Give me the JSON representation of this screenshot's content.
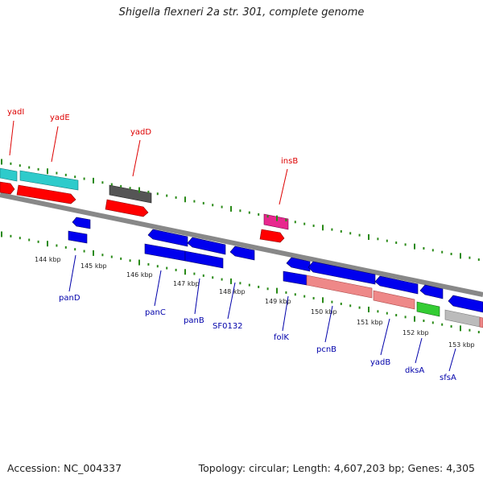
{
  "title": "Shigella flexneri 2a str. 301, complete genome",
  "footer": {
    "accession": "Accession: NC_004337",
    "summary": "Topology: circular; Length: 4,607,203 bp; Genes: 4,305"
  },
  "colors": {
    "backbone": "#888888",
    "tick": "#2a8a18",
    "forward_cds": "#ff0000",
    "reverse_cds": "#0000ee",
    "cyan_feature": "#2ecbcb",
    "gray_feature": "#555555",
    "pink_feature": "#e8278e",
    "salmon_feature": "#ee8888",
    "green_feature": "#33cc33",
    "light_gray_feature": "#bbbbbb",
    "top_label": "#dd0000",
    "bottom_label": "#0000aa"
  },
  "scale_labels": [
    "144 kbp",
    "145 kbp",
    "146 kbp",
    "147 kbp",
    "148 kbp",
    "149 kbp",
    "150 kbp",
    "151 kbp",
    "152 kbp",
    "153 kbp"
  ],
  "top_genes": [
    "yadI",
    "yadE",
    "yadD",
    "insB"
  ],
  "bottom_genes": [
    "panD",
    "panC",
    "panB",
    "SF0132",
    "folK",
    "pcnB",
    "yadB",
    "dksA",
    "sfsA"
  ]
}
